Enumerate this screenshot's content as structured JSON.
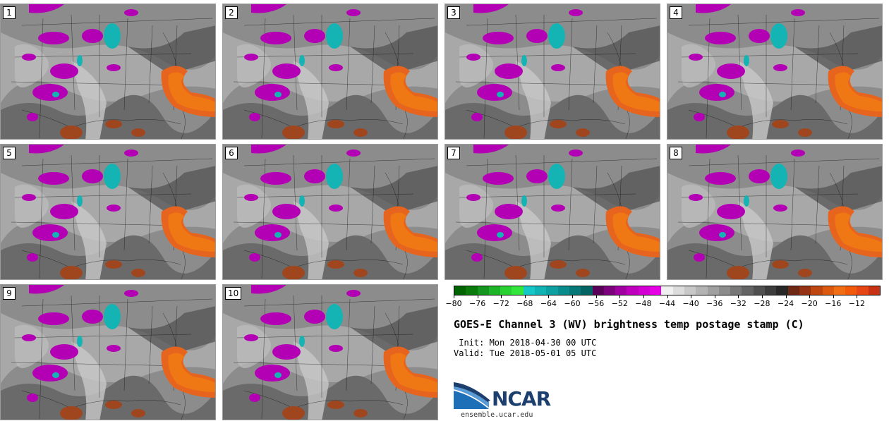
{
  "panels": [
    "1",
    "2",
    "3",
    "4",
    "5",
    "6",
    "7",
    "8",
    "9",
    "10"
  ],
  "colorbar": {
    "colors": [
      "#006400",
      "#0a7a0a",
      "#14961e",
      "#1eb428",
      "#28d232",
      "#32e63c",
      "#14c8c8",
      "#10b4b4",
      "#0ca0a0",
      "#088c8c",
      "#067878",
      "#046464",
      "#5a005a",
      "#7d007d",
      "#a000a0",
      "#be00be",
      "#d200d2",
      "#e600e6",
      "#f0f0f0",
      "#dcdcdc",
      "#c8c8c8",
      "#b4b4b4",
      "#a0a0a0",
      "#8c8c8c",
      "#787878",
      "#646464",
      "#505050",
      "#3c3c3c",
      "#282828",
      "#6e2814",
      "#963214",
      "#be460f",
      "#dc5a0f",
      "#f06e14",
      "#f05a0a",
      "#e64614",
      "#c83214"
    ],
    "ticks": [
      "-80",
      "-76",
      "-72",
      "-68",
      "-64",
      "-60",
      "-56",
      "-52",
      "-48",
      "-44",
      "-40",
      "-36",
      "-32",
      "-28",
      "-24",
      "-20",
      "-16",
      "-12"
    ]
  },
  "title": "GOES-E Channel 3 (WV) brightness temp postage stamp (C)",
  "init": " Init: Mon 2018-04-30 00 UTC",
  "valid": "Valid: Tue 2018-05-01 05 UTC",
  "logo": {
    "text": "NCAR",
    "url": "ensemble.ucar.edu"
  }
}
